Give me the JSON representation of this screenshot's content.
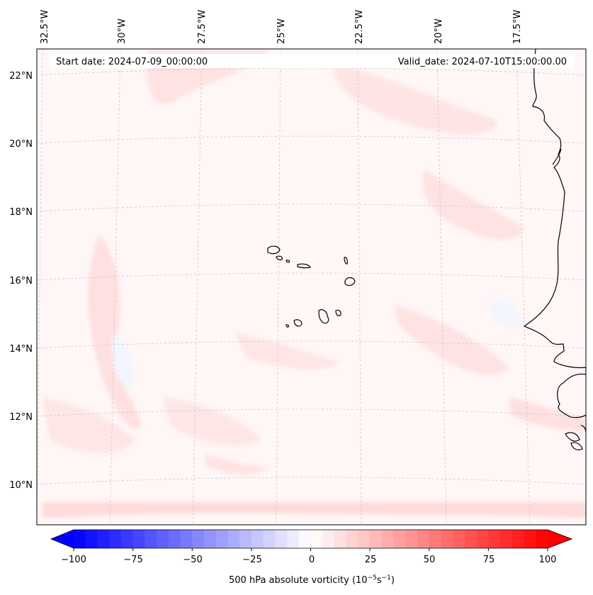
{
  "start_date": "Start date: 2024-07-09_00:00:00",
  "valid_date": "Valid_date: 2024-07-10T15:00:00.00",
  "lon_labels": [
    "32.5°W",
    "30°W",
    "27.5°W",
    "25°W",
    "22.5°W",
    "20°W",
    "17.5°W"
  ],
  "lat_labels": [
    "22°N",
    "20°N",
    "18°N",
    "16°N",
    "14°N",
    "12°N",
    "10°N"
  ],
  "colorbar": {
    "ticks": [
      "−100",
      "−75",
      "−50",
      "−25",
      "0",
      "25",
      "50",
      "75",
      "100"
    ],
    "label": "500 hPa absolute vorticity (10",
    "label_exp1": "−5",
    "label_mid": "s",
    "label_exp2": "−1",
    "label_close": ")",
    "min": -100,
    "max": 100,
    "step": 5
  },
  "colors": {
    "low": "#0000ff",
    "high": "#ff0000",
    "mid": "#ffffff",
    "coast": "#000000"
  },
  "chart_data": {
    "type": "heatmap",
    "title": "",
    "variable": "500 hPa absolute vorticity",
    "units": "10^-5 s^-1",
    "colorbar_range": [
      -100,
      100
    ],
    "longitude_ticks": [
      -32.5,
      -30,
      -27.5,
      -25,
      -22.5,
      -20,
      -17.5
    ],
    "latitude_ticks": [
      22,
      20,
      18,
      16,
      14,
      12,
      10
    ],
    "typical_values": [
      0,
      5,
      10,
      -5
    ]
  }
}
